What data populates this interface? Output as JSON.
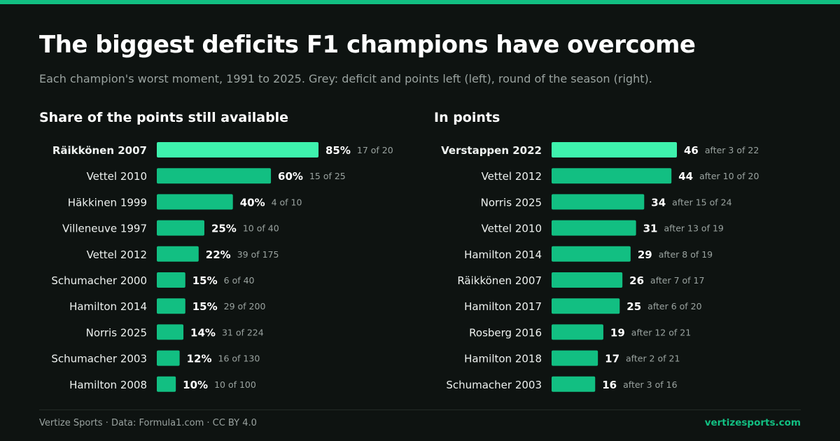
{
  "title": "The biggest deficits F1 champions have overcome",
  "subtitle": "Each champion's worst moment, 1991 to 2025. Grey: deficit and points left (left), round of the season (right).",
  "footer": {
    "credit": "Vertize Sports · Data: Formula1.com · CC BY 4.0",
    "brand": "vertizesports.com"
  },
  "colors": {
    "background": "#0e1311",
    "bar": "#12bf82",
    "highlight_bar": "#3ef2ad",
    "muted_text": "#9aa3a0"
  },
  "chart_data": [
    {
      "type": "bar",
      "orientation": "horizontal",
      "title": "Share of the points still available",
      "xlim": [
        0,
        85
      ],
      "categories": [
        "Räikkönen 2007",
        "Vettel 2010",
        "Häkkinen 1999",
        "Villeneuve 1997",
        "Vettel 2012",
        "Schumacher 2000",
        "Hamilton 2014",
        "Norris 2025",
        "Schumacher 2003",
        "Hamilton 2008"
      ],
      "values": [
        85,
        60,
        40,
        25,
        22,
        15,
        15,
        14,
        12,
        10
      ],
      "value_labels": [
        "85%",
        "60%",
        "40%",
        "25%",
        "22%",
        "15%",
        "15%",
        "14%",
        "12%",
        "10%"
      ],
      "notes": [
        "17 of 20",
        "15 of 25",
        "4 of 10",
        "10 of 40",
        "39 of 175",
        "6 of 40",
        "29 of 200",
        "31 of 224",
        "16 of 130",
        "10 of 100"
      ],
      "highlight_index": 0
    },
    {
      "type": "bar",
      "orientation": "horizontal",
      "title": "In points",
      "xlim": [
        0,
        46
      ],
      "categories": [
        "Verstappen 2022",
        "Vettel 2012",
        "Norris 2025",
        "Vettel 2010",
        "Hamilton 2014",
        "Räikkönen 2007",
        "Hamilton 2017",
        "Rosberg 2016",
        "Hamilton 2018",
        "Schumacher 2003"
      ],
      "values": [
        46,
        44,
        34,
        31,
        29,
        26,
        25,
        19,
        17,
        16
      ],
      "value_labels": [
        "46",
        "44",
        "34",
        "31",
        "29",
        "26",
        "25",
        "19",
        "17",
        "16"
      ],
      "notes": [
        "after 3 of 22",
        "after 10 of 20",
        "after 15 of 24",
        "after 13 of 19",
        "after 8 of 19",
        "after 7 of 17",
        "after 6 of 20",
        "after 12 of 21",
        "after 2 of 21",
        "after 3 of 16"
      ],
      "highlight_index": 0
    }
  ]
}
